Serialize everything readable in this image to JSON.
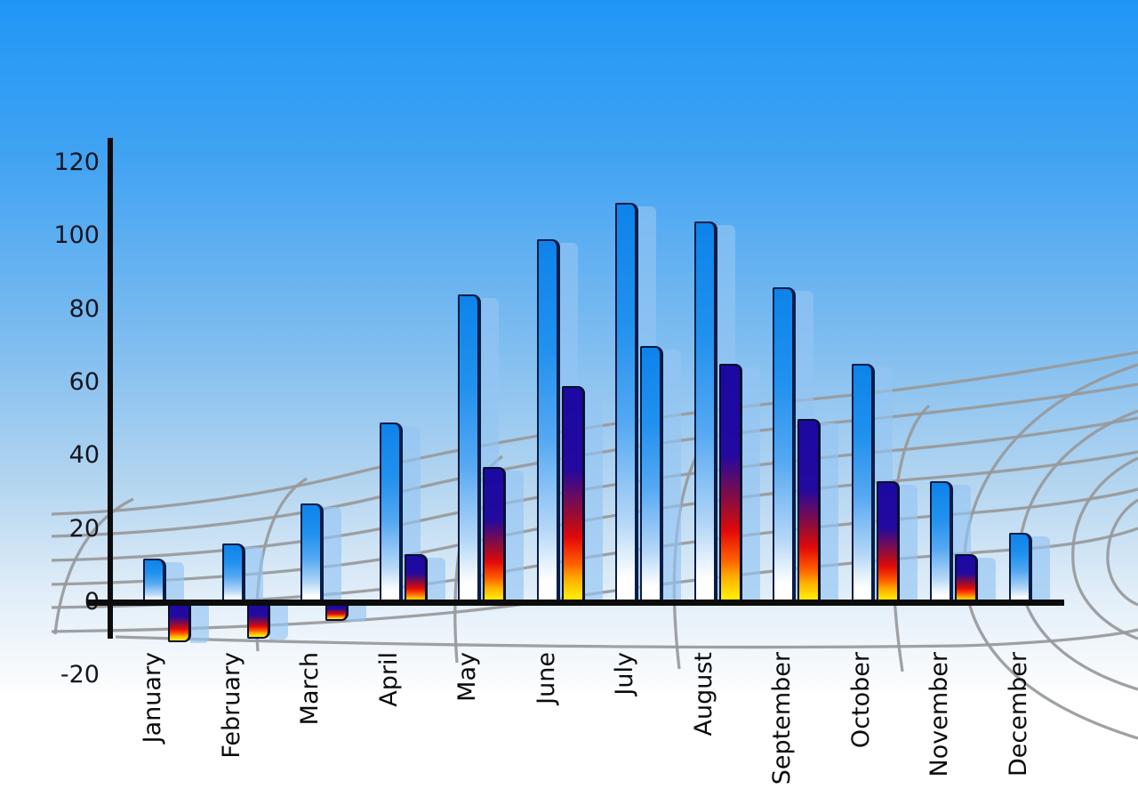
{
  "chart_data": {
    "type": "bar",
    "title": "",
    "xlabel": "",
    "ylabel": "",
    "categories": [
      "January",
      "February",
      "March",
      "April",
      "May",
      "June",
      "July",
      "August",
      "September",
      "October",
      "November",
      "December"
    ],
    "series": [
      {
        "name": "primary-blue-bars",
        "values": [
          12,
          16,
          27,
          49,
          84,
          99,
          109,
          104,
          86,
          65,
          33,
          19
        ]
      },
      {
        "name": "secondary-flame-bars",
        "values": [
          -11,
          -10,
          -5,
          13,
          37,
          59,
          70,
          65,
          50,
          33,
          13,
          null
        ]
      }
    ],
    "secondary_bar_styles": [
      "flame",
      "flame",
      "flame",
      "flame",
      "flame",
      "flame",
      "blue",
      "flame",
      "flame",
      "flame",
      "flame",
      null
    ],
    "ylim": [
      -20,
      120
    ],
    "yticks": [
      120,
      100,
      80,
      60,
      40,
      20,
      0,
      -20
    ],
    "legend": "none",
    "grid": "decorative curved gray wireframe mesh over sky gradient",
    "shadow_bars": "each bar has a translucent light-blue copy offset to the right"
  },
  "colors": {
    "sky-top": "#1f97f6",
    "sky-bottom": "#ffffff",
    "bar-blue-top": "#0d83ea",
    "bar-outline": "#0a1c46",
    "shadow-blue": "rgba(148,196,242,0.65)",
    "flame-navy": "#1b09a2",
    "flame-red": "#e30909",
    "flame-yellow": "#ffe607",
    "axis-color": "#0c0c0c",
    "label-color": "#15151f",
    "grid-line": "#97999b"
  }
}
